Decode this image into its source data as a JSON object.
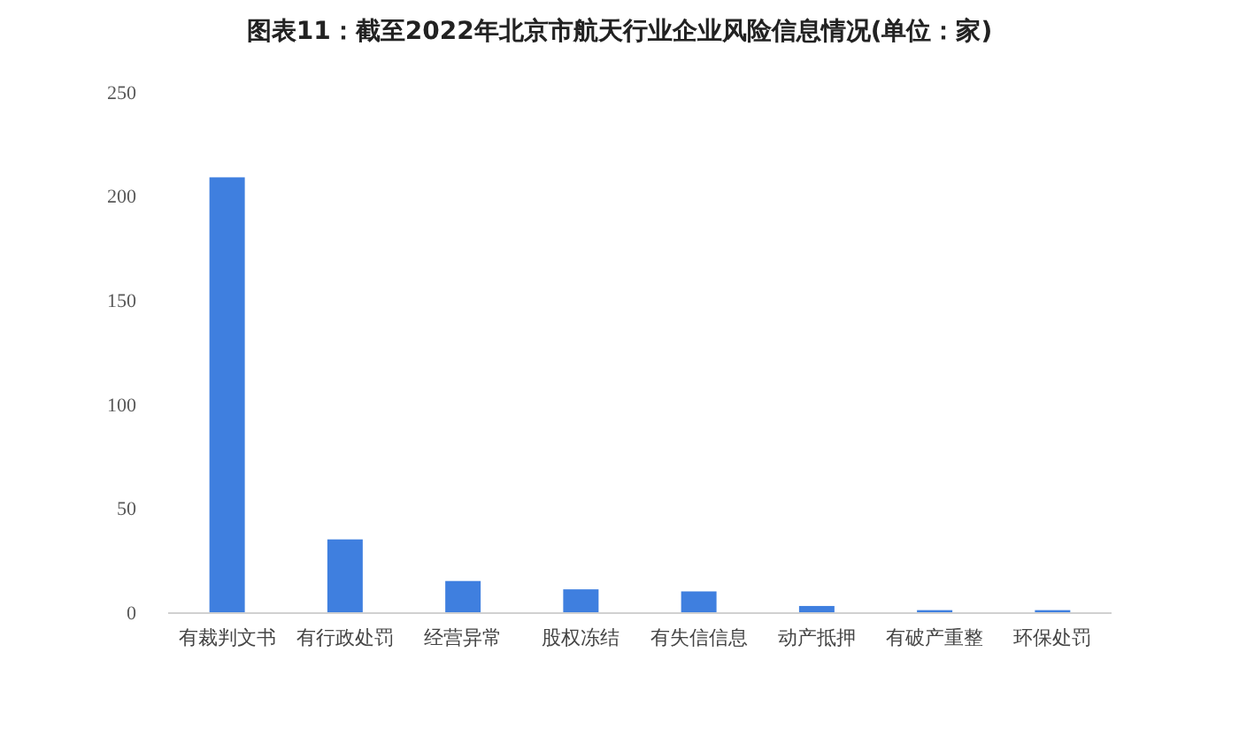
{
  "chart_data": {
    "type": "bar",
    "title": "图表11：截至2022年北京市航天行业企业风险信息情况(单位：家)",
    "categories": [
      "有裁判文书",
      "有行政处罚",
      "经营异常",
      "股权冻结",
      "有失信信息",
      "动产抵押",
      "有破产重整",
      "环保处罚"
    ],
    "values": [
      209,
      35,
      15,
      11,
      10,
      3,
      1,
      1
    ],
    "color": "#3f7fdf",
    "ylim": [
      0,
      250
    ],
    "yticks": [
      0,
      50,
      100,
      150,
      200,
      250
    ],
    "grid": false
  }
}
